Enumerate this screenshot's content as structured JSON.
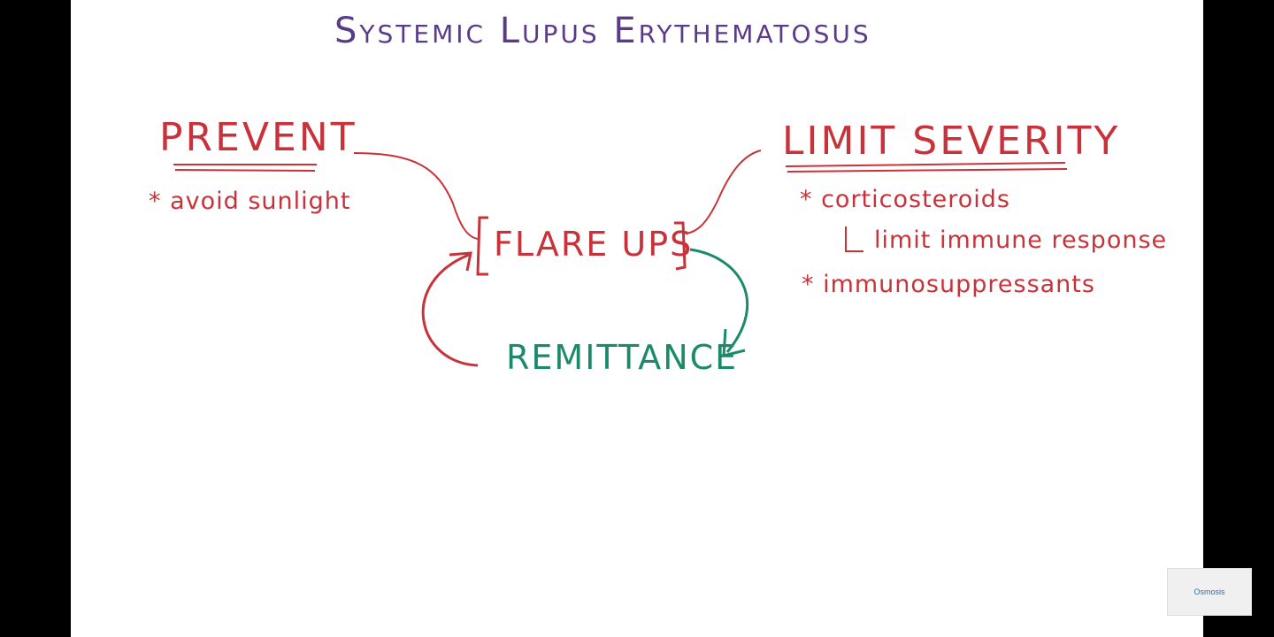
{
  "title": "Systemic Lupus Erythematosus",
  "prevent": {
    "heading": "PREVENT",
    "items": [
      "* avoid sunlight"
    ]
  },
  "limit": {
    "heading": "LIMIT SEVERITY",
    "items": [
      "* corticosteroids",
      "limit immune response",
      "* immunosuppressants"
    ]
  },
  "cycle": {
    "flare": "FLARE UPS",
    "remit": "REMITTANCE"
  },
  "logo": "Osmosis",
  "colors": {
    "title": "#5a3b8a",
    "red": "#c8323a",
    "green": "#1a8a6a"
  }
}
